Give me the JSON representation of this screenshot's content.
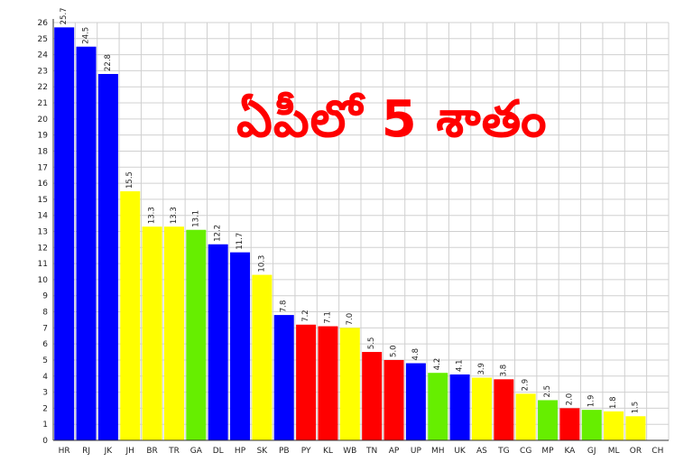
{
  "headline": "ఏపీలో  5 శాతం",
  "chart_data": {
    "type": "bar",
    "categories": [
      "HR",
      "RJ",
      "JK",
      "JH",
      "BR",
      "TR",
      "GA",
      "DL",
      "HP",
      "SK",
      "PB",
      "PY",
      "KL",
      "WB",
      "TN",
      "AP",
      "UP",
      "MH",
      "UK",
      "AS",
      "TG",
      "CG",
      "MP",
      "KA",
      "GJ",
      "ML",
      "OR",
      "CH"
    ],
    "values": [
      25.7,
      24.5,
      22.8,
      15.5,
      13.3,
      13.3,
      13.1,
      12.2,
      11.7,
      10.3,
      7.8,
      7.2,
      7.1,
      7.0,
      5.5,
      5.0,
      4.8,
      4.2,
      4.1,
      3.9,
      3.8,
      2.9,
      2.5,
      2.0,
      1.9,
      1.8,
      1.5,
      0
    ],
    "value_labels": [
      "25.7",
      "24.5",
      "22.8",
      "15.5",
      "13.3",
      "13.3",
      "13.1",
      "12.2",
      "11.7",
      "10.3",
      "7.8",
      "7.2",
      "7.1",
      "7.0",
      "5.5",
      "5.0",
      "4.8",
      "4.2",
      "4.1",
      "3.9",
      "3.8",
      "2.9",
      "2.5",
      "2.0",
      "1.9",
      "1.8",
      "1.5",
      ""
    ],
    "colors": [
      "#0000ff",
      "#0000ff",
      "#0000ff",
      "#ffff00",
      "#ffff00",
      "#ffff00",
      "#66ee00",
      "#0000ff",
      "#0000ff",
      "#ffff00",
      "#0000ff",
      "#ff0000",
      "#ff0000",
      "#ffff00",
      "#ff0000",
      "#ff0000",
      "#0000ff",
      "#66ee00",
      "#0000ff",
      "#ffff00",
      "#ff0000",
      "#ffff00",
      "#66ee00",
      "#ff0000",
      "#66ee00",
      "#ffff00",
      "#ffff00",
      "#ffffff"
    ],
    "ylim": [
      0,
      26
    ],
    "yticks": [
      0,
      1,
      2,
      3,
      4,
      5,
      6,
      7,
      8,
      9,
      10,
      11,
      12,
      13,
      14,
      15,
      16,
      17,
      18,
      19,
      20,
      21,
      22,
      23,
      24,
      25,
      26
    ],
    "grid": true,
    "title": "",
    "xlabel": "",
    "ylabel": ""
  }
}
